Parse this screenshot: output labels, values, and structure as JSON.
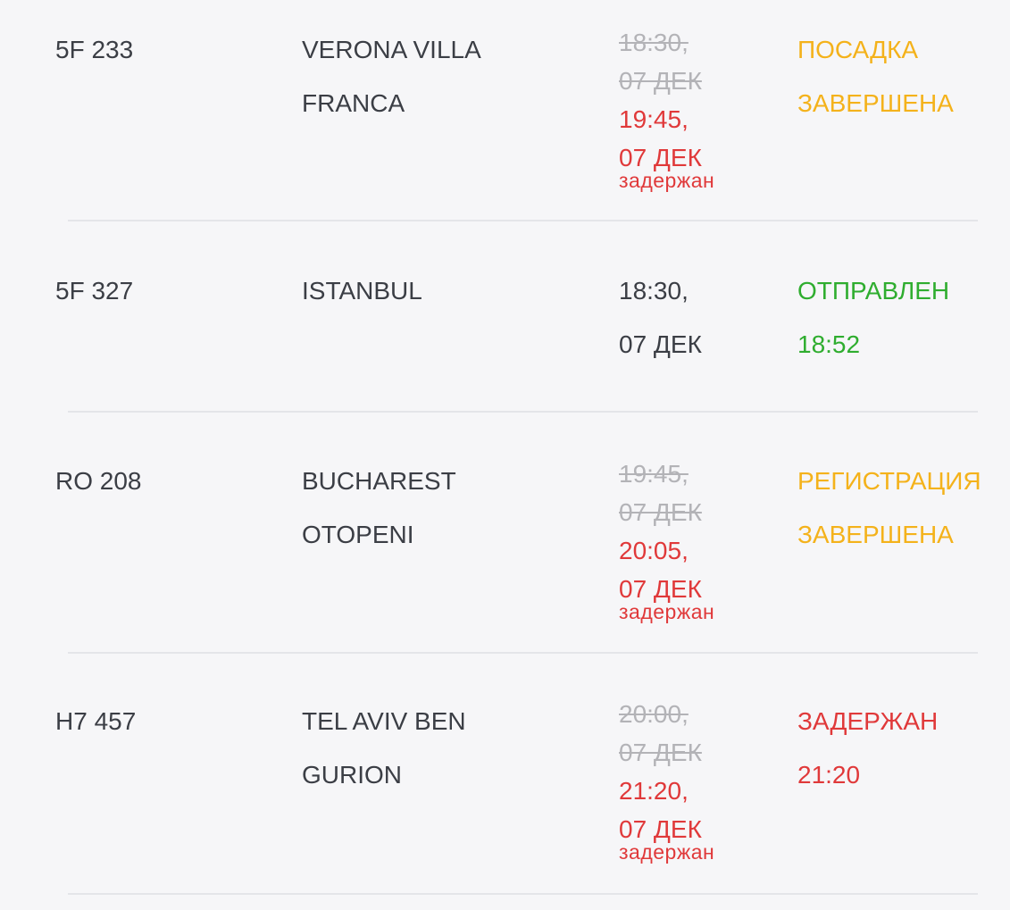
{
  "flights": [
    {
      "flight": "5F 233",
      "destination": [
        "VERONA VILLA",
        "FRANCA"
      ],
      "scheduled": [
        "18:30,",
        "07 ДЕК"
      ],
      "actual": [
        "19:45,",
        "07 ДЕК"
      ],
      "note": "задержан",
      "status": [
        "ПОСАДКА",
        "ЗАВЕРШЕНА"
      ],
      "status_color": "#f4b21b"
    },
    {
      "flight": "5F 327",
      "destination": [
        "ISTANBUL"
      ],
      "time": [
        "18:30,",
        "07 ДЕК"
      ],
      "status": [
        "ОТПРАВЛЕН",
        "18:52"
      ],
      "status_color": "#2fad2f"
    },
    {
      "flight": "RO 208",
      "destination": [
        "BUCHAREST",
        "OTOPENI"
      ],
      "scheduled": [
        "19:45,",
        "07 ДЕК"
      ],
      "actual": [
        "20:05,",
        "07 ДЕК"
      ],
      "note": "задержан",
      "status": [
        "РЕГИСТРАЦИЯ",
        "ЗАВЕРШЕНА"
      ],
      "status_color": "#f4b21b"
    },
    {
      "flight": "H7 457",
      "destination": [
        "TEL AVIV BEN",
        "GURION"
      ],
      "scheduled": [
        "20:00,",
        "07 ДЕК"
      ],
      "actual": [
        "21:20,",
        "07 ДЕК"
      ],
      "note": "задержан",
      "status": [
        "ЗАДЕРЖАН",
        "21:20"
      ],
      "status_color": "#e0393a"
    }
  ]
}
